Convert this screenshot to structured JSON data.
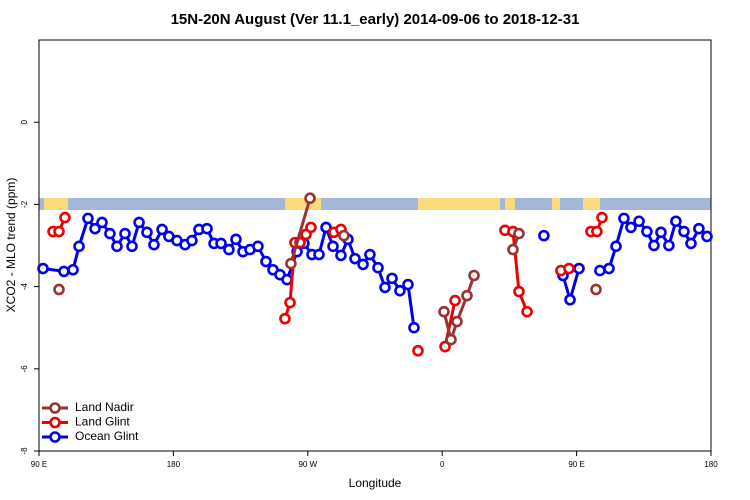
{
  "chart_data": {
    "type": "line",
    "title": "15N-20N August (Ver 11.1_early)   2014-09-06 to 2018-12-31",
    "x_label": "Longitude",
    "y_label": "XCO2 - MLO trend (ppm)",
    "xlim": [
      90,
      540
    ],
    "ylim": [
      -8,
      2
    ],
    "xticks": [
      {
        "value": 90,
        "label": "90 E"
      },
      180,
      {
        "value": 270,
        "label": "90 W"
      },
      {
        "value": 360,
        "label": "0"
      },
      {
        "value": 450,
        "label": "90 E"
      },
      {
        "value": 540,
        "label": "180"
      }
    ],
    "yticks": [
      -8,
      -6,
      -4,
      -2,
      0
    ],
    "legend": "bottom-left",
    "series": [
      {
        "name": "Land Nadir",
        "color": "#993333",
        "x": [
          103.4,
          null,
          258.7,
          271.5,
          null,
          294.2,
          null,
          361.2,
          365.9,
          369.9,
          376.6,
          381.3,
          null,
          407.4,
          411.4,
          null,
          463.0
        ],
        "values": [
          -4.07,
          null,
          -3.44,
          -1.85,
          null,
          -2.76,
          null,
          -4.61,
          -5.29,
          -4.85,
          -4.22,
          -3.73,
          null,
          -3.1,
          -2.71,
          null,
          -4.07
        ]
      },
      {
        "name": "Land Glint",
        "color": "#ee0000",
        "x": [
          99.4,
          103.4,
          107.4,
          null,
          254.7,
          258.1,
          261.4,
          264.8,
          268.8,
          272.1,
          null,
          287.5,
          292.2,
          null,
          343.8,
          null,
          361.9,
          368.6,
          null,
          402.0,
          407.4,
          411.4,
          416.8,
          null,
          439.5,
          444.9,
          null,
          459.6,
          463.6,
          467.0
        ],
        "values": [
          -2.66,
          -2.66,
          -2.32,
          null,
          -4.78,
          -4.39,
          -2.93,
          -2.93,
          -2.73,
          -2.56,
          null,
          -2.68,
          -2.61,
          null,
          -5.56,
          null,
          -5.46,
          -4.34,
          null,
          -2.63,
          -2.66,
          -4.12,
          -4.61,
          null,
          -3.61,
          -3.56,
          null,
          -2.66,
          -2.66,
          -2.32
        ]
      },
      {
        "name": "Ocean Glint",
        "color": "#0000ee",
        "x": [
          92.7,
          106.7,
          112.8,
          116.8,
          122.8,
          127.5,
          132.2,
          137.5,
          142.2,
          147.6,
          152.3,
          157.0,
          162.3,
          167.0,
          172.4,
          177.0,
          182.4,
          187.8,
          192.4,
          197.1,
          202.5,
          207.2,
          211.9,
          217.2,
          221.9,
          226.6,
          231.3,
          236.6,
          242.0,
          246.7,
          251.4,
          256.1,
          262.8,
          267.4,
          272.8,
          277.5,
          282.2,
          286.9,
          292.2,
          296.9,
          301.6,
          307.0,
          311.6,
          317.0,
          321.7,
          326.4,
          331.7,
          337.1,
          341.1,
          null,
          428.1,
          null,
          440.9,
          445.6,
          451.6,
          null,
          465.6,
          471.7,
          476.4,
          481.7,
          486.4,
          491.8,
          497.1,
          501.8,
          506.5,
          511.8,
          516.5,
          521.9,
          526.6,
          531.9,
          537.3
        ],
        "values": [
          -3.56,
          -3.63,
          -3.59,
          -3.02,
          -2.34,
          -2.59,
          -2.44,
          -2.71,
          -3.02,
          -2.71,
          -3.02,
          -2.44,
          -2.68,
          -2.98,
          -2.61,
          -2.78,
          -2.88,
          -2.98,
          -2.88,
          -2.61,
          -2.59,
          -2.95,
          -2.95,
          -3.1,
          -2.85,
          -3.15,
          -3.1,
          -3.02,
          -3.39,
          -3.59,
          -3.71,
          -3.83,
          -3.15,
          -2.95,
          -3.22,
          -3.22,
          -2.56,
          -3.02,
          -3.24,
          -2.85,
          -3.32,
          -3.46,
          -3.22,
          -3.54,
          -4.02,
          -3.8,
          -4.1,
          -3.95,
          -5.0,
          null,
          -2.76,
          null,
          -3.73,
          -4.32,
          -3.56,
          null,
          -3.61,
          -3.56,
          -3.02,
          -2.34,
          -2.56,
          -2.41,
          -2.66,
          -3.0,
          -2.68,
          -3.0,
          -2.41,
          -2.66,
          -2.95,
          -2.59,
          -2.78
        ]
      }
    ]
  }
}
